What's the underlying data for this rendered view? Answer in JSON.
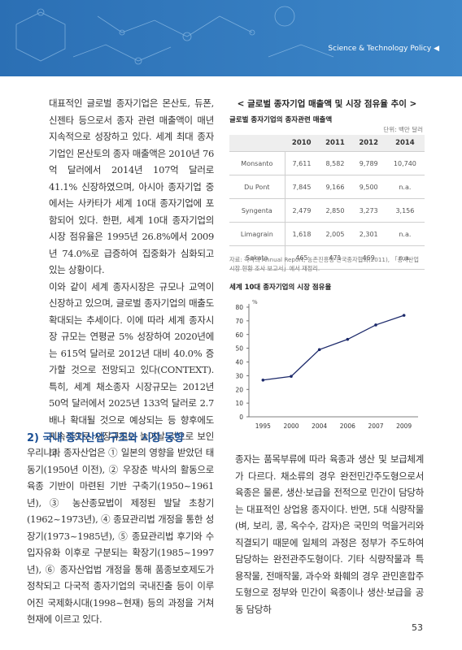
{
  "header": {
    "title": "Science & Technology Policy ◀"
  },
  "left_column": {
    "paragraphs": [
      "대표적인 글로벌 종자기업은 몬산토, 듀폰, 신젠타 등으로서 종자 관련 매출액이 매년 지속적으로 성장하고 있다. 세계 최대 종자기업인 몬산토의 종자 매출액은 2010년 76억 달러에서 2014년 107억 달러로 41.1% 신장하였으며, 아시아 종자기업 중에서는 사카타가 세계 10대 종자기업에 포함되어 있다. 한편, 세계 10대 종자기업의 시장 점유율은 1995년 26.8%에서 2009년 74.0%로 급증하여 집중화가 심화되고 있는 상황이다.",
      "이와 같이 세계 종자시장은 규모나 교역이 신장하고 있으며, 글로벌 종자기업의 매출도 확대되는 추세이다. 이에 따라 세계 종자시장 규모는 연평균 5% 성장하여 2020년에는 615억 달러로 2012년 대비 40.0% 증가할 것으로 전망되고 있다(CONTEXT). 특히, 세계 채소종자 시장규모는 2012년 50억 달러에서 2025년 133억 달러로 2.7배나 확대될 것으로 예상되는 등 향후에도 지속적으로 시장규모는 늘어날 것으로 보인다."
    ]
  },
  "figure": {
    "title": "< 글로벌 종자기업 매출액 및 시장 점유율 추이 >"
  },
  "table": {
    "title": "글로벌 종자기업의 종자관련 매출액",
    "unit": "단위: 백만 달러",
    "columns": [
      "2010",
      "2011",
      "2012",
      "2014"
    ],
    "rows": [
      [
        "Monsanto",
        "7,611",
        "8,582",
        "9,789",
        "10,740"
      ],
      [
        "Du Pont",
        "7,845",
        "9,166",
        "9,500",
        "n.a."
      ],
      [
        "Syngenta",
        "2,479",
        "2,850",
        "3,273",
        "3,156"
      ],
      [
        "Limagrain",
        "1,618",
        "2,005",
        "2,301",
        "n.a."
      ],
      [
        "Sakata",
        "465",
        "471",
        "469",
        "n.a."
      ]
    ],
    "source": "자료: 각사의 Annual Report; 농촌진흥청·한국종자협회(2011), 「종자산업 시장 현황 조사 보고서」에서 재정리."
  },
  "chart_data": {
    "type": "line",
    "title": "세계 10대 종자기업의 시장 점유율",
    "y_unit": "%",
    "categories": [
      "1995",
      "2000",
      "2004",
      "2006",
      "2007",
      "2009"
    ],
    "values": [
      26.8,
      29.5,
      49,
      56.5,
      67,
      74.0
    ],
    "color": "#1d2a6b",
    "ylim": [
      0,
      80
    ],
    "yticks": [
      0,
      10,
      20,
      30,
      40,
      50,
      60,
      70,
      80
    ],
    "grid": false
  },
  "section": {
    "heading": "2) 국내 종자산업 구조와 시장 동향",
    "left_text": "우리나라 종자산업은 ① 일본의 영향을 받았던 태동기(1950년 이전), ② 우장춘 박사의 활동으로 육종 기반이 마련된 기반 구축기(1950~1961년), ③ 농산종묘법이 제정된 발달 초창기(1962~1973년), ④ 종묘관리법 개정을 통한 성장기(1973~1985년), ⑤ 종묘관리법 후기와 수입자유화 이후로 구분되는 확장기(1985~1997년), ⑥ 종자산업법 개정을 통해 품종보호제도가 정착되고 다국적 종자기업의 국내진출 등이 이루어진 국제화시대(1998~현재) 등의 과정을 거쳐 현재에 이르고 있다.",
    "right_text": "종자는 품목부류에 따라 육종과 생산 및 보급체계가 다르다. 채소류의 경우 완전민간주도형으로서 육종은 물론, 생산·보급을 전적으로 민간이 담당하는 대표적인 상업용 종자이다. 반면, 5대 식량작물(벼, 보리, 콩, 옥수수, 감자)은 국민의 먹을거리와 직결되기 때문에 일체의 과정은 정부가 주도하여 담당하는 완전관주도형이다. 기타 식량작물과 특용작물, 전매작물, 과수와 화훼의 경우 관민혼합주도형으로 정부와 민간이 육종이나 생산·보급을 공동 담당하"
  },
  "footer": {
    "page_number": "53"
  }
}
